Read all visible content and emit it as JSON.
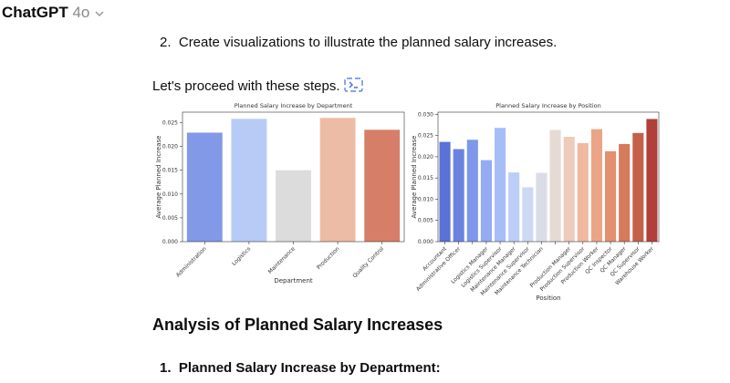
{
  "header": {
    "title": "ChatGPT",
    "model": "4o"
  },
  "step": {
    "number": "2.",
    "text": "Create visualizations to illustrate the planned salary increases."
  },
  "intro": "Let's proceed with these steps.",
  "chart_data": [
    {
      "type": "bar",
      "title": "Planned Salary Increase by Department",
      "x_label": "Department",
      "y_label": "Average Planned Increase",
      "categories": [
        "Administration",
        "Logistics",
        "Maintenance",
        "Production",
        "Quality Control"
      ],
      "values": [
        0.0229,
        0.0258,
        0.015,
        0.026,
        0.0235
      ],
      "colors": [
        "#8299e7",
        "#b8cbf6",
        "#dcdcdc",
        "#ecbca6",
        "#d67e68"
      ],
      "ylim": [
        0,
        0.0272
      ],
      "yticks": [
        {
          "value": 0,
          "label": "0.000"
        },
        {
          "value": 0.005,
          "label": "0.005"
        },
        {
          "value": 0.01,
          "label": "0.010"
        },
        {
          "value": 0.015,
          "label": "0.015"
        },
        {
          "value": 0.02,
          "label": "0.020"
        },
        {
          "value": 0.025,
          "label": "0.025"
        }
      ]
    },
    {
      "type": "bar",
      "title": "Planned Salary Increase by Position",
      "x_label": "Position",
      "y_label": "Average Planned Increase",
      "categories": [
        "Accountant",
        "Administrative Officer",
        null,
        "Logistics Manager",
        "Logistics Supervisor",
        "Maintenance Manager",
        "Maintenance Supervisor",
        "Maintenance Technician",
        null,
        "Production Manager",
        "Production Supervisor",
        "Production Worker",
        "QC Inspector",
        "QC Manager",
        "QC Supervisor",
        "Warehouse Worker"
      ],
      "values": [
        0.0235,
        0.0218,
        0.024,
        0.0192,
        0.0268,
        0.0163,
        0.0128,
        0.0162,
        0.0263,
        0.0247,
        0.0232,
        0.0265,
        0.0213,
        0.023,
        0.0256,
        0.0289
      ],
      "colors": [
        "#5b72d6",
        "#6b83e0",
        "#7e97ea",
        "#93abf2",
        "#a7bdf7",
        "#bccdf7",
        "#cdd8f2",
        "#dadde6",
        "#e6dad4",
        "#eecbbb",
        "#f0b9a0",
        "#eba586",
        "#e2906f",
        "#d57a5b",
        "#c46049",
        "#b0413a"
      ],
      "ylim": [
        0,
        0.0305
      ],
      "yticks": [
        {
          "value": 0,
          "label": "0.000"
        },
        {
          "value": 0.005,
          "label": "0.005"
        },
        {
          "value": 0.01,
          "label": "0.010"
        },
        {
          "value": 0.015,
          "label": "0.015"
        },
        {
          "value": 0.02,
          "label": "0.020"
        },
        {
          "value": 0.025,
          "label": "0.025"
        },
        {
          "value": 0.03,
          "label": "0.030"
        }
      ]
    }
  ],
  "heading": "Analysis of Planned Salary Increases",
  "sub_item": {
    "number": "1.",
    "text": "Planned Salary Increase by Department:"
  }
}
